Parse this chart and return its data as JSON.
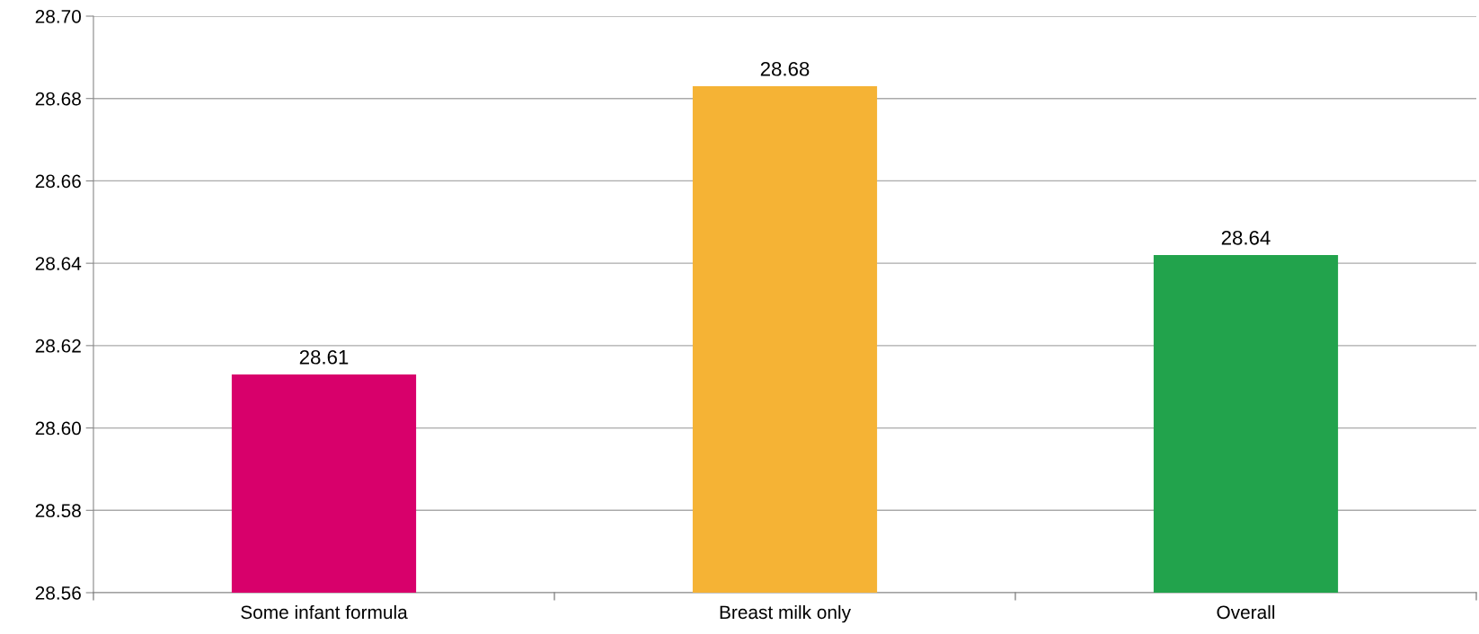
{
  "chart_data": {
    "type": "bar",
    "categories": [
      "Some infant formula",
      "Breast milk only",
      "Overall"
    ],
    "values": [
      28.613,
      28.683,
      28.642
    ],
    "colors": [
      "#d8006b",
      "#f5b335",
      "#22a34c"
    ],
    "value_labels": [
      "28.61",
      "28.68",
      "28.64"
    ],
    "ylim": [
      28.56,
      28.7
    ],
    "yticks": [
      {
        "value": 28.56,
        "label": "28.56"
      },
      {
        "value": 28.58,
        "label": "28.58"
      },
      {
        "value": 28.6,
        "label": "28.60"
      },
      {
        "value": 28.62,
        "label": "28.62"
      },
      {
        "value": 28.64,
        "label": "28.64"
      },
      {
        "value": 28.66,
        "label": "28.66"
      },
      {
        "value": 28.68,
        "label": "28.68"
      },
      {
        "value": 28.7,
        "label": "28.70"
      }
    ],
    "grid": "y",
    "legend": false
  }
}
